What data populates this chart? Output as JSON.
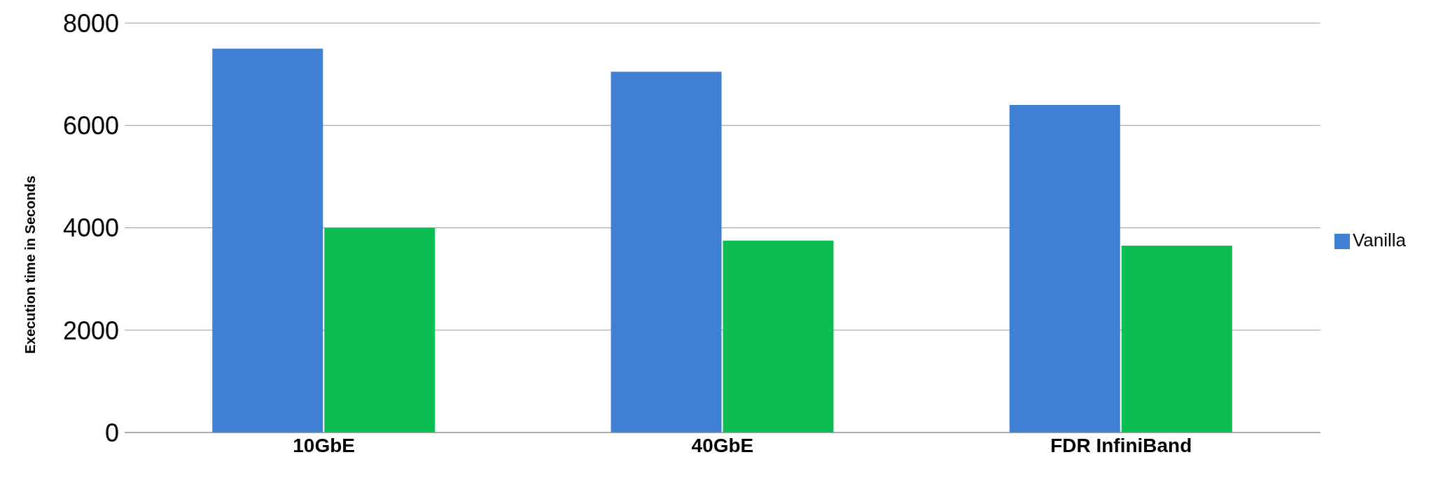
{
  "chart_data": {
    "type": "bar",
    "ylabel": "Execution time in Seconds",
    "categories": [
      "10GbE",
      "40GbE",
      "FDR InfiniBand"
    ],
    "series": [
      {
        "name": "Vanilla",
        "color": "#3f7fd4",
        "values": [
          7500,
          7050,
          6400
        ]
      },
      {
        "color": "#0bbd52",
        "values": [
          4000,
          3750,
          3650
        ]
      }
    ],
    "ylim": [
      0,
      8000
    ],
    "yticks": [
      0,
      2000,
      4000,
      6000,
      8000
    ],
    "grid": "y",
    "legend": "right"
  }
}
